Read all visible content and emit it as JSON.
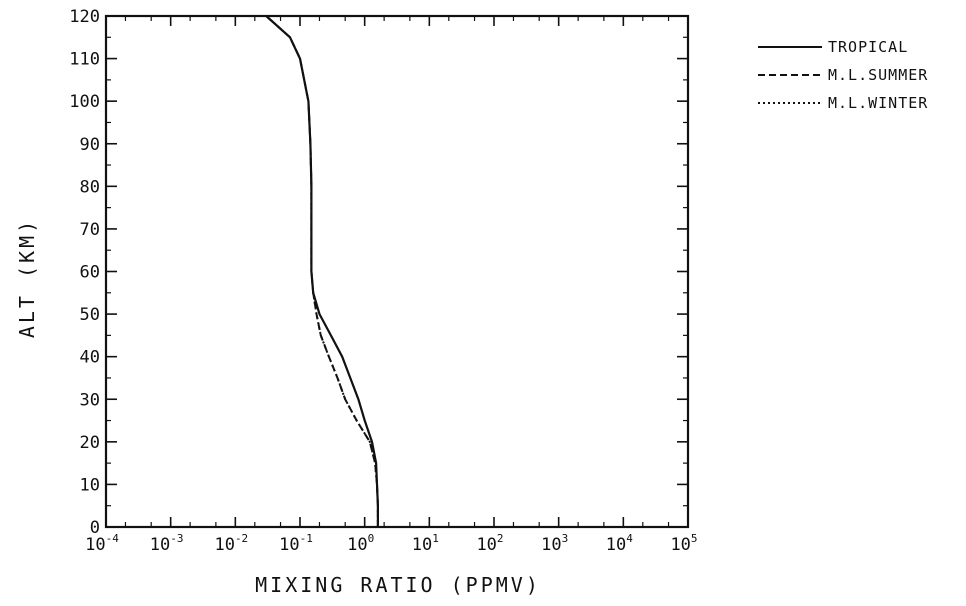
{
  "chart_data": {
    "type": "line",
    "xlabel": "MIXING RATIO (PPMV)",
    "ylabel": "ALT (KM)",
    "xscale": "log",
    "xlim": [
      0.0001,
      100000
    ],
    "ylim": [
      0,
      120
    ],
    "xticks": [
      {
        "value": 0.0001,
        "base": "10",
        "exp": "-4"
      },
      {
        "value": 0.001,
        "base": "10",
        "exp": "-3"
      },
      {
        "value": 0.01,
        "base": "10",
        "exp": "-2"
      },
      {
        "value": 0.1,
        "base": "10",
        "exp": "-1"
      },
      {
        "value": 1,
        "base": "10",
        "exp": "0"
      },
      {
        "value": 10,
        "base": "10",
        "exp": "1"
      },
      {
        "value": 100,
        "base": "10",
        "exp": "2"
      },
      {
        "value": 1000,
        "base": "10",
        "exp": "3"
      },
      {
        "value": 10000,
        "base": "10",
        "exp": "4"
      },
      {
        "value": 100000,
        "base": "10",
        "exp": "5"
      }
    ],
    "yticks": [
      "0",
      "10",
      "20",
      "30",
      "40",
      "50",
      "60",
      "70",
      "80",
      "90",
      "100",
      "110",
      "120"
    ],
    "grid": false,
    "legend_position": "outside-right",
    "series": [
      {
        "name": "TROPICAL",
        "style": "solid",
        "color": "#111111",
        "points": [
          [
            1.6,
            0
          ],
          [
            1.6,
            5
          ],
          [
            1.55,
            10
          ],
          [
            1.5,
            15
          ],
          [
            1.3,
            20
          ],
          [
            1.0,
            25
          ],
          [
            0.8,
            30
          ],
          [
            0.6,
            35
          ],
          [
            0.45,
            40
          ],
          [
            0.3,
            45
          ],
          [
            0.2,
            50
          ],
          [
            0.16,
            55
          ],
          [
            0.15,
            60
          ],
          [
            0.15,
            70
          ],
          [
            0.15,
            80
          ],
          [
            0.145,
            90
          ],
          [
            0.135,
            100
          ],
          [
            0.1,
            110
          ],
          [
            0.07,
            115
          ],
          [
            0.03,
            120
          ]
        ]
      },
      {
        "name": "M.L.SUMMER",
        "style": "dashed",
        "color": "#111111",
        "points": [
          [
            1.6,
            0
          ],
          [
            1.6,
            5
          ],
          [
            1.55,
            10
          ],
          [
            1.45,
            15
          ],
          [
            1.2,
            20
          ],
          [
            0.75,
            25
          ],
          [
            0.5,
            30
          ],
          [
            0.38,
            35
          ],
          [
            0.28,
            40
          ],
          [
            0.21,
            45
          ],
          [
            0.18,
            50
          ],
          [
            0.16,
            55
          ],
          [
            0.15,
            60
          ],
          [
            0.15,
            70
          ],
          [
            0.15,
            80
          ],
          [
            0.145,
            90
          ],
          [
            0.135,
            100
          ],
          [
            0.1,
            110
          ],
          [
            0.07,
            115
          ],
          [
            0.03,
            120
          ]
        ]
      },
      {
        "name": "M.L.WINTER",
        "style": "dotted",
        "color": "#111111",
        "points": [
          [
            1.6,
            0
          ],
          [
            1.6,
            5
          ],
          [
            1.55,
            10
          ],
          [
            1.45,
            15
          ],
          [
            1.2,
            20
          ],
          [
            0.75,
            25
          ],
          [
            0.5,
            30
          ],
          [
            0.38,
            35
          ],
          [
            0.28,
            40
          ],
          [
            0.21,
            45
          ],
          [
            0.18,
            50
          ],
          [
            0.16,
            55
          ],
          [
            0.15,
            60
          ],
          [
            0.15,
            70
          ],
          [
            0.15,
            80
          ],
          [
            0.145,
            90
          ],
          [
            0.135,
            100
          ],
          [
            0.1,
            110
          ],
          [
            0.07,
            115
          ],
          [
            0.03,
            120
          ]
        ]
      }
    ]
  }
}
